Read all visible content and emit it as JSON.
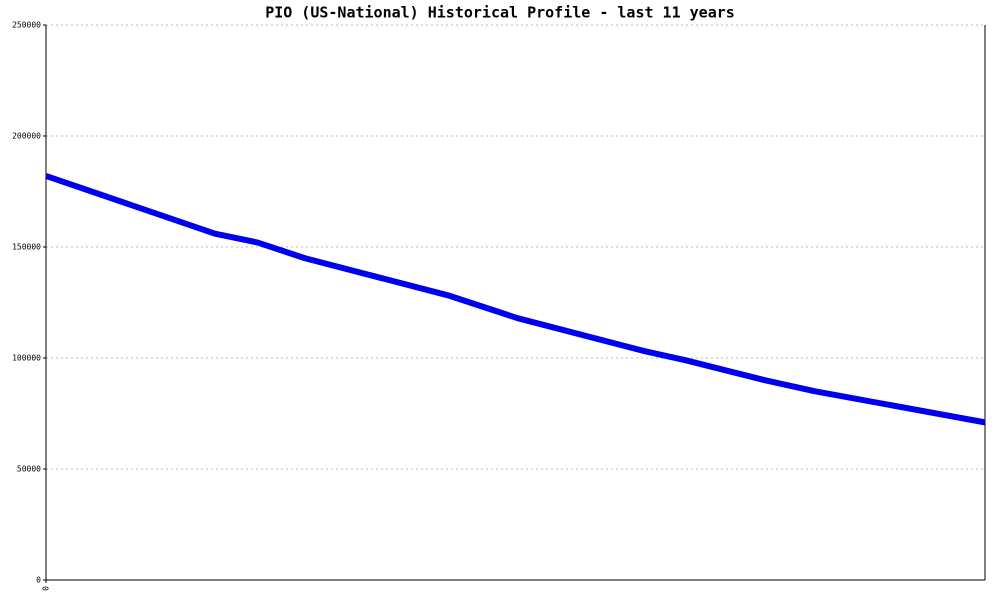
{
  "chart_data": {
    "type": "line",
    "title": "PIO (US-National) Historical Profile - last 11 years",
    "x": [
      0,
      1.98,
      2.48,
      3.03,
      4.73,
      5.52,
      7.02,
      7.49,
      8.42,
      9.01,
      11
    ],
    "series": [
      {
        "name": "PIO",
        "color": "#0000ee",
        "values": [
          182000,
          156000,
          152000,
          145000,
          128000,
          118000,
          103000,
          99000,
          90000,
          85000,
          71000
        ]
      }
    ],
    "xlim": [
      0,
      11
    ],
    "xticks": [
      0
    ],
    "ylim": [
      0,
      250000
    ],
    "yticks": [
      0,
      50000,
      100000,
      150000,
      200000,
      250000
    ],
    "grid": true
  }
}
